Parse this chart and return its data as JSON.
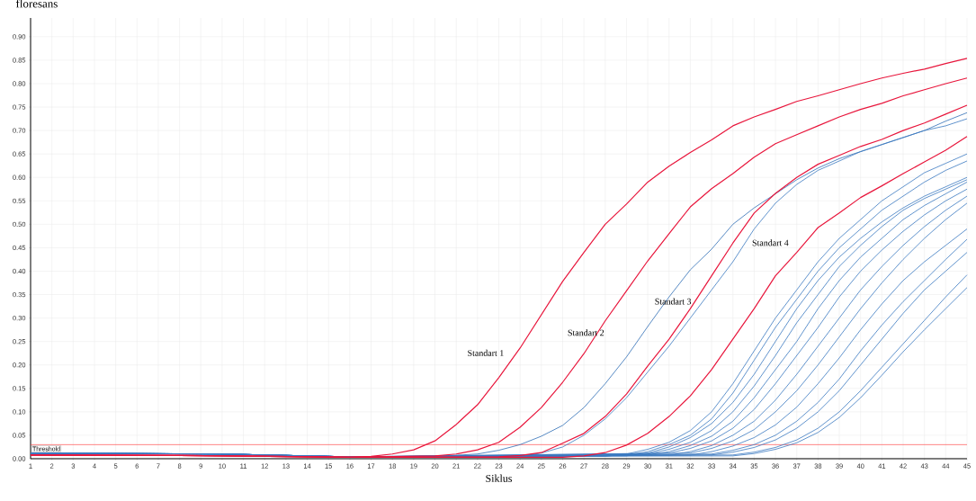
{
  "chart_data": {
    "type": "line",
    "xlabel": "Siklus",
    "ylabel": "floresans",
    "xlim": [
      1,
      45
    ],
    "xticks": [
      1,
      2,
      3,
      4,
      5,
      6,
      7,
      8,
      9,
      10,
      11,
      12,
      13,
      14,
      15,
      16,
      17,
      18,
      19,
      20,
      21,
      22,
      23,
      24,
      25,
      26,
      27,
      28,
      29,
      30,
      31,
      32,
      33,
      34,
      35,
      36,
      37,
      38,
      39,
      40,
      41,
      42,
      43,
      44,
      45
    ],
    "ylim": [
      0,
      0.94
    ],
    "yticks": [
      {
        "value": 0,
        "label": "0.00"
      },
      {
        "value": 0.05,
        "label": "0.05"
      },
      {
        "value": 0.1,
        "label": "0.10"
      },
      {
        "value": 0.15,
        "label": "0.15"
      },
      {
        "value": 0.2,
        "label": "0.20"
      },
      {
        "value": 0.25,
        "label": "0.25"
      },
      {
        "value": 0.3,
        "label": "0.30"
      },
      {
        "value": 0.35,
        "label": "0.35"
      },
      {
        "value": 0.4,
        "label": "0.40"
      },
      {
        "value": 0.45,
        "label": "0.45"
      },
      {
        "value": 0.5,
        "label": "0.50"
      },
      {
        "value": 0.55,
        "label": "0.55"
      },
      {
        "value": 0.6,
        "label": "0.60"
      },
      {
        "value": 0.65,
        "label": "0.65"
      },
      {
        "value": 0.7,
        "label": "0.70"
      },
      {
        "value": 0.75,
        "label": "0.75"
      },
      {
        "value": 0.8,
        "label": "0.80"
      },
      {
        "value": 0.85,
        "label": "0.85"
      },
      {
        "value": 0.9,
        "label": "0.90"
      }
    ],
    "grid": true,
    "marker": "none",
    "line_style": "solid",
    "ref_lines": [
      {
        "axis": "y",
        "value": 0.03,
        "label": "Threshold",
        "color": "#ff3030"
      }
    ],
    "annotations": [
      "Standart 1",
      "Standart 2",
      "Standart 3",
      "Standart 4"
    ],
    "series": [
      {
        "color": "#2f6db5",
        "x": [
          1,
          10,
          16,
          20,
          22,
          23,
          24,
          25,
          26,
          27,
          28,
          29,
          30,
          31,
          32,
          33,
          34,
          35,
          36,
          37,
          38,
          39,
          40,
          41,
          42,
          43,
          44,
          45
        ],
        "values": [
          0.012,
          0.01,
          0.004,
          0.005,
          0.01,
          0.018,
          0.03,
          0.048,
          0.071,
          0.109,
          0.16,
          0.217,
          0.282,
          0.345,
          0.403,
          0.447,
          0.5,
          0.535,
          0.565,
          0.595,
          0.62,
          0.64,
          0.655,
          0.67,
          0.685,
          0.7,
          0.72,
          0.738
        ]
      },
      {
        "color": "#3a78c0",
        "x": [
          1,
          10,
          16,
          24,
          25,
          26,
          27,
          28,
          29,
          30,
          31,
          32,
          33,
          34,
          35,
          36,
          37,
          38,
          39,
          40,
          41,
          42,
          43,
          44,
          45
        ],
        "values": [
          0.012,
          0.01,
          0.004,
          0.006,
          0.012,
          0.025,
          0.05,
          0.085,
          0.13,
          0.185,
          0.24,
          0.3,
          0.36,
          0.42,
          0.49,
          0.545,
          0.585,
          0.615,
          0.635,
          0.655,
          0.67,
          0.685,
          0.7,
          0.71,
          0.725
        ]
      },
      {
        "color": "#3a78c0",
        "x": [
          1,
          10,
          16,
          28,
          29,
          30,
          31,
          32,
          33,
          34,
          35,
          36,
          37,
          38,
          39,
          40,
          41,
          42,
          43,
          44,
          45
        ],
        "values": [
          0.012,
          0.01,
          0.004,
          0.005,
          0.01,
          0.02,
          0.035,
          0.06,
          0.1,
          0.16,
          0.23,
          0.3,
          0.36,
          0.42,
          0.47,
          0.51,
          0.55,
          0.58,
          0.61,
          0.63,
          0.65
        ]
      },
      {
        "color": "#3a78c0",
        "x": [
          1,
          10,
          16,
          29,
          30,
          31,
          32,
          33,
          34,
          35,
          36,
          37,
          38,
          39,
          40,
          41,
          42,
          43,
          44,
          45
        ],
        "values": [
          0.012,
          0.01,
          0.004,
          0.008,
          0.015,
          0.03,
          0.05,
          0.085,
          0.14,
          0.21,
          0.28,
          0.34,
          0.4,
          0.45,
          0.49,
          0.53,
          0.56,
          0.59,
          0.615,
          0.635
        ]
      },
      {
        "color": "#3a78c0",
        "x": [
          1,
          10,
          16,
          29,
          30,
          31,
          32,
          33,
          34,
          35,
          36,
          37,
          38,
          39,
          40,
          41,
          42,
          43,
          44,
          45
        ],
        "values": [
          0.012,
          0.01,
          0.004,
          0.006,
          0.012,
          0.025,
          0.045,
          0.075,
          0.12,
          0.18,
          0.25,
          0.32,
          0.38,
          0.43,
          0.47,
          0.505,
          0.535,
          0.56,
          0.58,
          0.6
        ]
      },
      {
        "color": "#3a78c0",
        "x": [
          1,
          10,
          16,
          30,
          31,
          32,
          33,
          34,
          35,
          36,
          37,
          38,
          39,
          40,
          41,
          42,
          43,
          44,
          45
        ],
        "values": [
          0.012,
          0.01,
          0.004,
          0.01,
          0.02,
          0.035,
          0.06,
          0.1,
          0.155,
          0.22,
          0.29,
          0.35,
          0.41,
          0.455,
          0.495,
          0.53,
          0.555,
          0.575,
          0.595
        ]
      },
      {
        "color": "#3a78c0",
        "x": [
          1,
          10,
          16,
          30,
          31,
          32,
          33,
          34,
          35,
          36,
          37,
          38,
          39,
          40,
          41,
          42,
          43,
          44,
          45
        ],
        "values": [
          0.012,
          0.01,
          0.004,
          0.008,
          0.015,
          0.028,
          0.048,
          0.08,
          0.13,
          0.19,
          0.25,
          0.32,
          0.38,
          0.43,
          0.47,
          0.51,
          0.54,
          0.565,
          0.59
        ]
      },
      {
        "color": "#3a78c0",
        "x": [
          1,
          10,
          16,
          31,
          32,
          33,
          34,
          35,
          36,
          37,
          38,
          39,
          40,
          41,
          42,
          43,
          44,
          45
        ],
        "values": [
          0.012,
          0.01,
          0.004,
          0.012,
          0.022,
          0.038,
          0.065,
          0.105,
          0.16,
          0.22,
          0.28,
          0.345,
          0.4,
          0.445,
          0.485,
          0.52,
          0.55,
          0.575
        ]
      },
      {
        "color": "#3a78c0",
        "x": [
          1,
          10,
          16,
          31,
          32,
          33,
          34,
          35,
          36,
          37,
          38,
          39,
          40,
          41,
          42,
          43,
          44,
          45
        ],
        "values": [
          0.012,
          0.01,
          0.004,
          0.008,
          0.015,
          0.028,
          0.05,
          0.08,
          0.125,
          0.18,
          0.24,
          0.3,
          0.36,
          0.41,
          0.455,
          0.495,
          0.53,
          0.56
        ]
      },
      {
        "color": "#3a78c0",
        "x": [
          1,
          10,
          16,
          32,
          33,
          34,
          35,
          36,
          37,
          38,
          39,
          40,
          41,
          42,
          43,
          44,
          45
        ],
        "values": [
          0.012,
          0.01,
          0.004,
          0.012,
          0.022,
          0.038,
          0.062,
          0.1,
          0.145,
          0.2,
          0.26,
          0.32,
          0.375,
          0.425,
          0.47,
          0.51,
          0.545
        ]
      },
      {
        "color": "#3a78c0",
        "x": [
          1,
          10,
          16,
          32,
          33,
          34,
          35,
          36,
          37,
          38,
          39,
          40,
          41,
          42,
          43,
          44,
          45
        ],
        "values": [
          0.012,
          0.01,
          0.004,
          0.008,
          0.015,
          0.027,
          0.045,
          0.072,
          0.11,
          0.16,
          0.215,
          0.275,
          0.33,
          0.38,
          0.42,
          0.455,
          0.49
        ]
      },
      {
        "color": "#3a78c0",
        "x": [
          1,
          10,
          16,
          33,
          34,
          35,
          36,
          37,
          38,
          39,
          40,
          41,
          42,
          43,
          44,
          45
        ],
        "values": [
          0.012,
          0.01,
          0.004,
          0.01,
          0.018,
          0.03,
          0.05,
          0.08,
          0.12,
          0.17,
          0.23,
          0.285,
          0.335,
          0.38,
          0.425,
          0.468
        ]
      },
      {
        "color": "#3a78c0",
        "x": [
          1,
          10,
          16,
          33,
          34,
          35,
          36,
          37,
          38,
          39,
          40,
          41,
          42,
          43,
          44,
          45
        ],
        "values": [
          0.012,
          0.01,
          0.004,
          0.008,
          0.014,
          0.024,
          0.04,
          0.065,
          0.1,
          0.145,
          0.2,
          0.255,
          0.31,
          0.36,
          0.4,
          0.44
        ]
      },
      {
        "color": "#3a78c0",
        "x": [
          1,
          10,
          16,
          34,
          35,
          36,
          37,
          38,
          39,
          40,
          41,
          42,
          43,
          44,
          45
        ],
        "values": [
          0.012,
          0.01,
          0.004,
          0.008,
          0.014,
          0.024,
          0.04,
          0.065,
          0.1,
          0.145,
          0.195,
          0.245,
          0.295,
          0.345,
          0.392
        ]
      },
      {
        "color": "#3a78c0",
        "x": [
          1,
          10,
          16,
          34,
          35,
          36,
          37,
          38,
          39,
          40,
          41,
          42,
          43,
          44,
          45
        ],
        "values": [
          0.012,
          0.01,
          0.004,
          0.006,
          0.011,
          0.02,
          0.034,
          0.056,
          0.088,
          0.13,
          0.178,
          0.228,
          0.275,
          0.32,
          0.365
        ]
      },
      {
        "color": "#e8163c",
        "x": [
          1,
          8,
          16,
          17,
          18,
          19,
          20,
          21,
          22,
          23,
          24,
          25,
          26,
          27,
          28,
          29,
          30,
          31,
          32,
          33,
          34,
          35,
          36,
          37,
          38,
          39,
          40,
          41,
          42,
          43,
          44,
          45
        ],
        "values": [
          0.008,
          0.007,
          0.003,
          0.005,
          0.01,
          0.019,
          0.038,
          0.073,
          0.115,
          0.173,
          0.236,
          0.307,
          0.378,
          0.44,
          0.5,
          0.543,
          0.59,
          0.624,
          0.653,
          0.68,
          0.71,
          0.729,
          0.745,
          0.762,
          0.774,
          0.787,
          0.8,
          0.812,
          0.822,
          0.831,
          0.843,
          0.854
        ]
      },
      {
        "color": "#e8163c",
        "x": [
          1,
          8,
          16,
          20,
          21,
          22,
          23,
          24,
          25,
          26,
          27,
          28,
          29,
          30,
          31,
          32,
          33,
          34,
          35,
          36,
          37,
          38,
          39,
          40,
          41,
          42,
          43,
          44,
          45
        ],
        "values": [
          0.008,
          0.007,
          0.003,
          0.006,
          0.01,
          0.019,
          0.035,
          0.067,
          0.109,
          0.163,
          0.224,
          0.294,
          0.358,
          0.422,
          0.48,
          0.537,
          0.576,
          0.608,
          0.643,
          0.672,
          0.691,
          0.71,
          0.729,
          0.745,
          0.758,
          0.774,
          0.787,
          0.8,
          0.812
        ]
      },
      {
        "color": "#e8163c",
        "x": [
          1,
          8,
          16,
          23,
          24,
          25,
          26,
          27,
          28,
          29,
          30,
          31,
          32,
          33,
          34,
          35,
          36,
          37,
          38,
          39,
          40,
          41,
          42,
          43,
          44,
          45
        ],
        "values": [
          0.008,
          0.007,
          0.003,
          0.004,
          0.007,
          0.013,
          0.033,
          0.054,
          0.09,
          0.138,
          0.198,
          0.255,
          0.32,
          0.39,
          0.46,
          0.524,
          0.566,
          0.6,
          0.628,
          0.647,
          0.666,
          0.681,
          0.7,
          0.716,
          0.735,
          0.754
        ]
      },
      {
        "color": "#e8163c",
        "x": [
          1,
          8,
          16,
          26,
          27,
          28,
          29,
          30,
          31,
          32,
          33,
          34,
          35,
          36,
          37,
          38,
          39,
          40,
          41,
          42,
          43,
          44,
          45
        ],
        "values": [
          0.008,
          0.007,
          0.003,
          0.003,
          0.006,
          0.013,
          0.029,
          0.054,
          0.09,
          0.134,
          0.19,
          0.255,
          0.32,
          0.39,
          0.44,
          0.493,
          0.524,
          0.557,
          0.582,
          0.608,
          0.633,
          0.658,
          0.687
        ]
      }
    ]
  }
}
